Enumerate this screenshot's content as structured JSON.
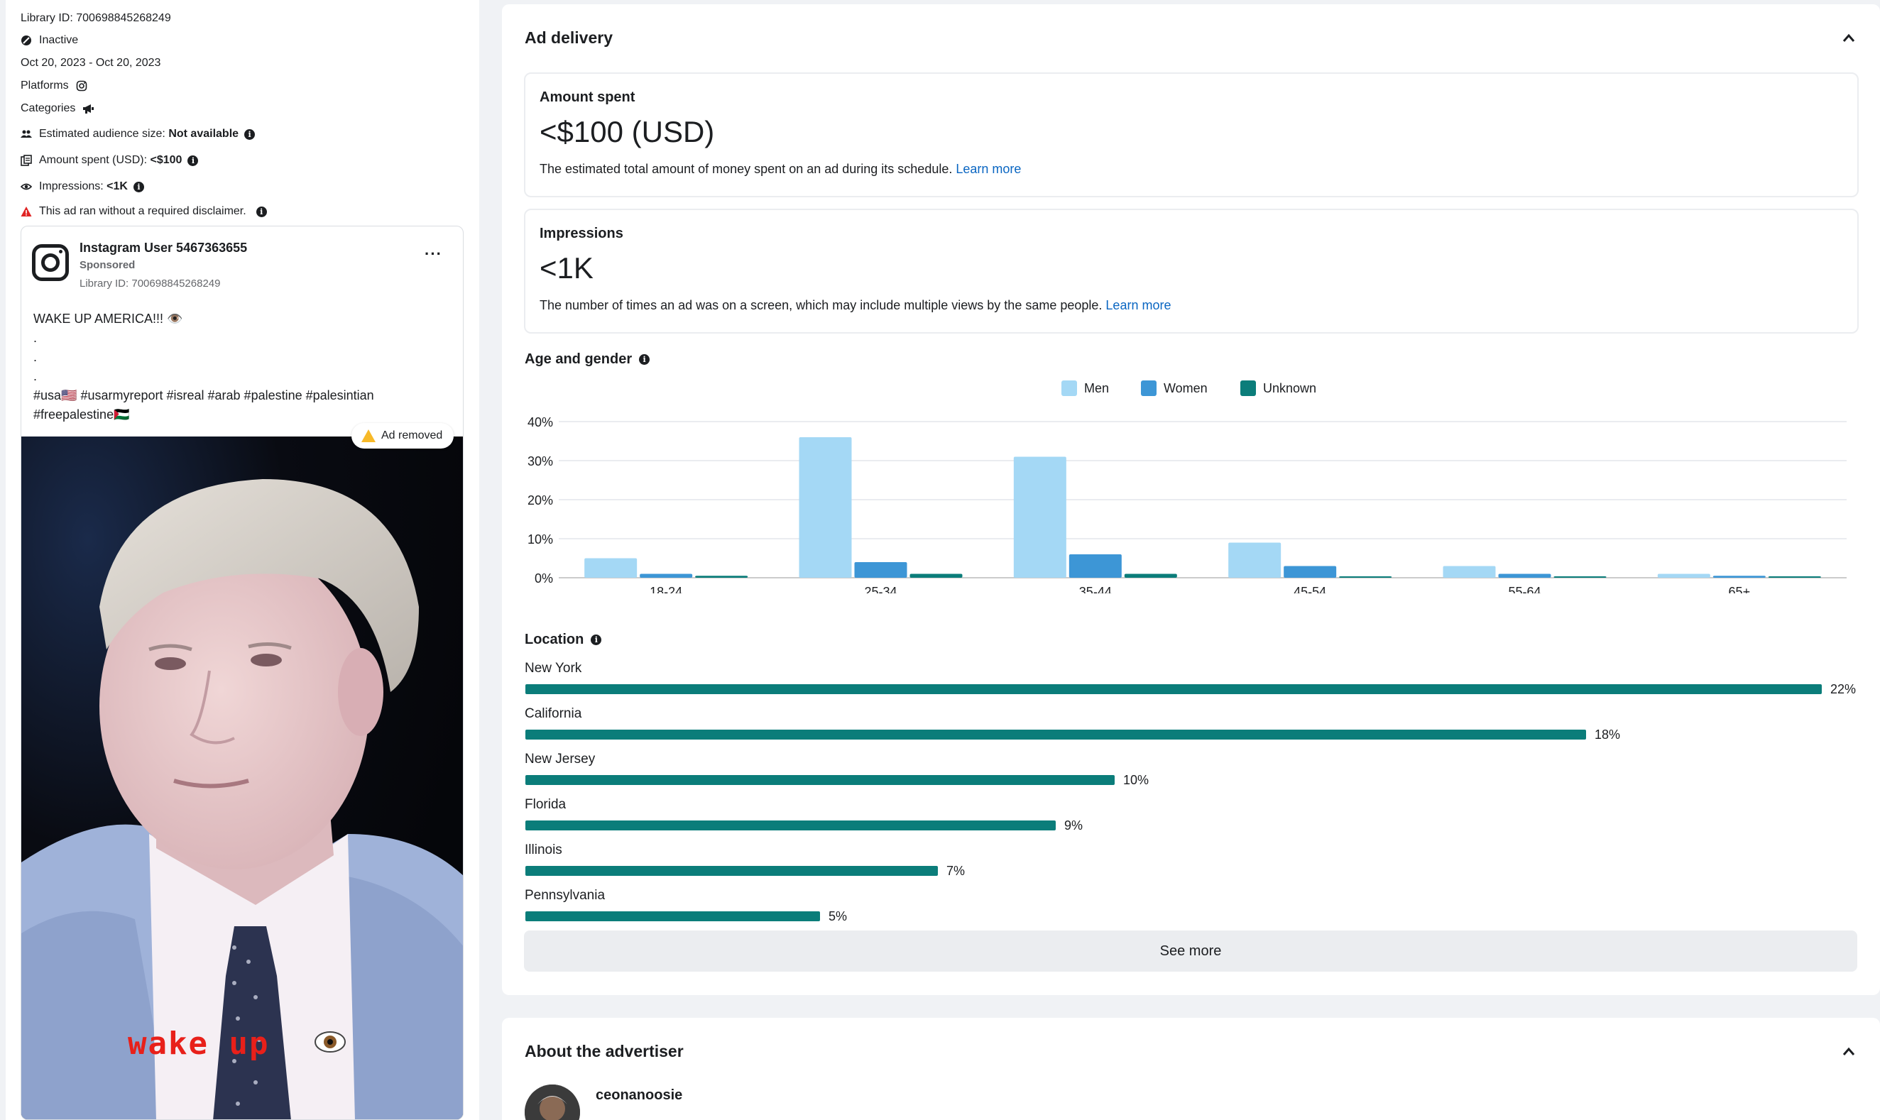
{
  "summary": {
    "library_id": "Library ID: 700698845268249",
    "status": "Inactive",
    "dates": "Oct 20, 2023 - Oct 20, 2023",
    "platforms_label": "Platforms",
    "categories_label": "Categories",
    "audience_label": "Estimated audience size:",
    "audience_value": "Not available",
    "amount_label": "Amount spent (USD):",
    "amount_value": "<$100",
    "impressions_label": "Impressions:",
    "impressions_value": "<1K",
    "disclaimer": "This ad ran without a required disclaimer."
  },
  "ad": {
    "account": "Instagram User 5467363655",
    "sponsored": "Sponsored",
    "library_id": "Library ID: 700698845268249",
    "text_line1": "WAKE UP AMERICA!!! 👁️",
    "text_dot1": ".",
    "text_dot2": ".",
    "text_dot3": ".",
    "text_tags1": "#usa🇺🇸 #usarmyreport #isreal #arab #palestine #palesintian",
    "text_tags2": "#freepalestine🇵🇸",
    "removed_badge": "Ad removed",
    "video_caption": "wake up"
  },
  "delivery": {
    "title": "Ad delivery",
    "amount": {
      "title": "Amount spent",
      "value": "<$100 (USD)",
      "desc": "The estimated total amount of money spent on an ad during its schedule.",
      "link": "Learn more"
    },
    "impressions": {
      "title": "Impressions",
      "value": "<1K",
      "desc": "The number of times an ad was on a screen, which may include multiple views by the same people.",
      "link": "Learn more"
    },
    "age_gender_title": "Age and gender",
    "location_title": "Location",
    "locations": [
      {
        "name": "New York",
        "pct": "22%",
        "value": 22
      },
      {
        "name": "California",
        "pct": "18%",
        "value": 18
      },
      {
        "name": "New Jersey",
        "pct": "10%",
        "value": 10
      },
      {
        "name": "Florida",
        "pct": "9%",
        "value": 9
      },
      {
        "name": "Illinois",
        "pct": "7%",
        "value": 7
      },
      {
        "name": "Pennsylvania",
        "pct": "5%",
        "value": 5
      }
    ],
    "see_more": "See more"
  },
  "advertiser": {
    "title": "About the advertiser",
    "name": "ceonanoosie"
  },
  "colors": {
    "men": "#a4d8f5",
    "women": "#3d96d6",
    "unknown": "#0b7d7a",
    "link": "#0a66c2"
  },
  "chart_data": {
    "type": "bar",
    "categories": [
      "18-24",
      "25-34",
      "35-44",
      "45-54",
      "55-64",
      "65+"
    ],
    "series": [
      {
        "name": "Men",
        "values": [
          5,
          36,
          31,
          9,
          3,
          1
        ]
      },
      {
        "name": "Women",
        "values": [
          1,
          4,
          6,
          3,
          1,
          0.5
        ]
      },
      {
        "name": "Unknown",
        "values": [
          0.5,
          1,
          1,
          0.3,
          0.3,
          0.3
        ]
      }
    ],
    "yticks": [
      "0%",
      "10%",
      "20%",
      "30%",
      "40%"
    ],
    "ylim": [
      0,
      40
    ],
    "grid": true,
    "legend": "top-center"
  }
}
